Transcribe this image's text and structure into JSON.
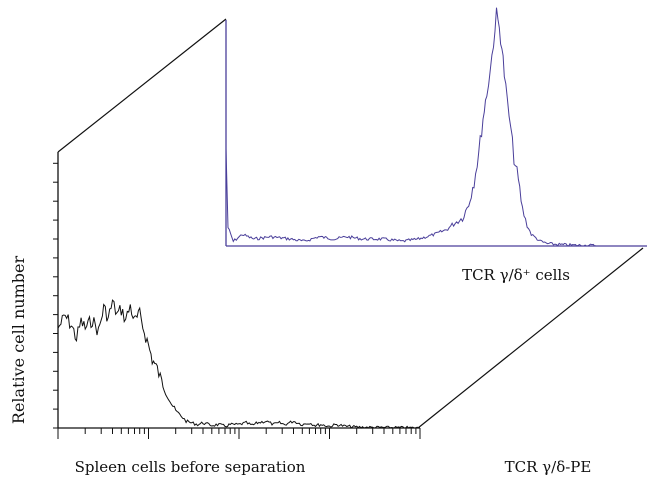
{
  "chart_data": [
    {
      "type": "area",
      "name": "before",
      "xscale": "log",
      "xlim": [
        1,
        10000
      ],
      "ylim": [
        0,
        100
      ],
      "xlabel": "Spleen cells before separation",
      "ylabel": "Relative cell number",
      "series": [
        {
          "color": "#111111",
          "points": [
            [
              1,
              58
            ],
            [
              1.2,
              65
            ],
            [
              1.4,
              60
            ],
            [
              1.6,
              52
            ],
            [
              1.8,
              62
            ],
            [
              2,
              58
            ],
            [
              2.4,
              63
            ],
            [
              2.8,
              56
            ],
            [
              3.2,
              70
            ],
            [
              3.6,
              64
            ],
            [
              4,
              73
            ],
            [
              4.5,
              66
            ],
            [
              5,
              69
            ],
            [
              5.6,
              63
            ],
            [
              6.3,
              71
            ],
            [
              7,
              62
            ],
            [
              8,
              66
            ],
            [
              9,
              56
            ],
            [
              10,
              48
            ],
            [
              11,
              40
            ],
            [
              12.5,
              34
            ],
            [
              14,
              27
            ],
            [
              16,
              20
            ],
            [
              18,
              14
            ],
            [
              20,
              10
            ],
            [
              23,
              7
            ],
            [
              26,
              4
            ],
            [
              30,
              3
            ],
            [
              35,
              2
            ],
            [
              40,
              3
            ],
            [
              50,
              1.5
            ],
            [
              60,
              2
            ],
            [
              70,
              1
            ],
            [
              80,
              2
            ],
            [
              100,
              2
            ],
            [
              120,
              3
            ],
            [
              140,
              1.5
            ],
            [
              160,
              3
            ],
            [
              200,
              4
            ],
            [
              240,
              2
            ],
            [
              280,
              3
            ],
            [
              320,
              2
            ],
            [
              400,
              4
            ],
            [
              500,
              2
            ],
            [
              600,
              3
            ],
            [
              700,
              1.5
            ],
            [
              800,
              2
            ],
            [
              1000,
              1
            ],
            [
              1200,
              2
            ],
            [
              1500,
              1
            ],
            [
              2000,
              0.5
            ],
            [
              3000,
              0.3
            ],
            [
              5000,
              0.2
            ],
            [
              10000,
              0
            ]
          ]
        }
      ]
    },
    {
      "type": "area",
      "name": "after",
      "xscale": "log",
      "xlim": [
        1,
        10000
      ],
      "ylim": [
        0,
        100
      ],
      "xlabel": "TCR γ/δ⁺ cells",
      "series": [
        {
          "color": "#4a3f9a",
          "points": [
            [
              1,
              42
            ],
            [
              1.05,
              8
            ],
            [
              1.2,
              2
            ],
            [
              1.5,
              5
            ],
            [
              2,
              3
            ],
            [
              3,
              4
            ],
            [
              5,
              3
            ],
            [
              7,
              2
            ],
            [
              10,
              4
            ],
            [
              15,
              3
            ],
            [
              20,
              4
            ],
            [
              30,
              3
            ],
            [
              50,
              3
            ],
            [
              80,
              2
            ],
            [
              120,
              3
            ],
            [
              180,
              5
            ],
            [
              240,
              7
            ],
            [
              300,
              10
            ],
            [
              360,
              12
            ],
            [
              420,
              18
            ],
            [
              480,
              28
            ],
            [
              540,
              40
            ],
            [
              600,
              55
            ],
            [
              660,
              66
            ],
            [
              720,
              76
            ],
            [
              780,
              88
            ],
            [
              840,
              100
            ],
            [
              900,
              94
            ],
            [
              960,
              86
            ],
            [
              1020,
              74
            ],
            [
              1100,
              62
            ],
            [
              1200,
              50
            ],
            [
              1300,
              38
            ],
            [
              1450,
              28
            ],
            [
              1600,
              16
            ],
            [
              1800,
              9
            ],
            [
              2000,
              5
            ],
            [
              2500,
              2
            ],
            [
              3000,
              1
            ],
            [
              4000,
              0.6
            ],
            [
              6000,
              0.3
            ],
            [
              10000,
              0.2
            ]
          ]
        }
      ]
    }
  ],
  "labels": {
    "x_axis_title": "TCR γ/δ-PE"
  }
}
